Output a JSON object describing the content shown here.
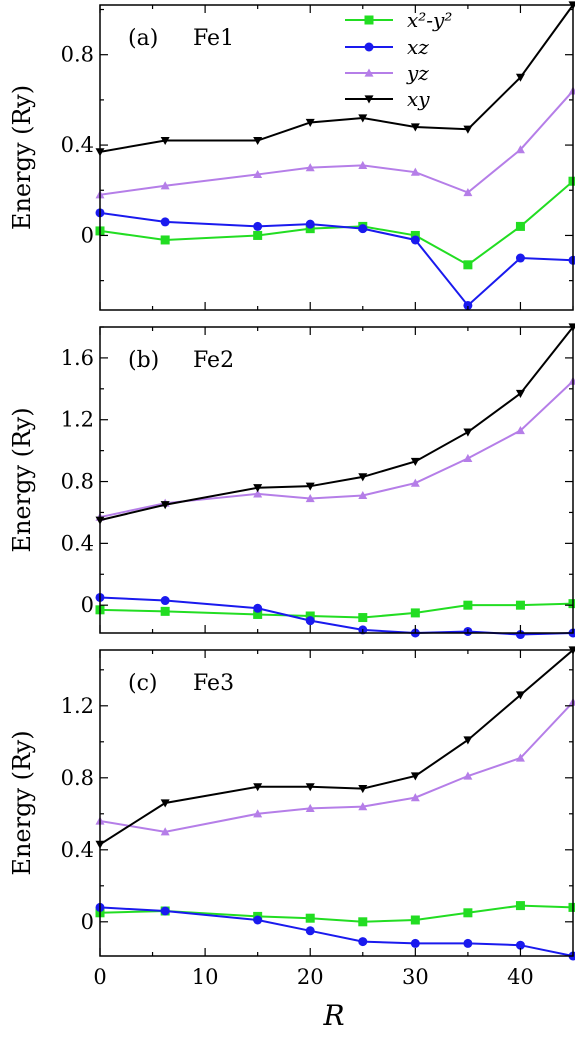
{
  "colors": {
    "x2y2": "#22dd22",
    "xz": "#1a1aee",
    "yz": "#b57ee8",
    "xy": "#000000"
  },
  "legend": [
    {
      "key": "x2y2",
      "label": "x²-y²",
      "marker": "square"
    },
    {
      "key": "xz",
      "label": "xz",
      "marker": "circle"
    },
    {
      "key": "yz",
      "label": "yz",
      "marker": "triangle-up"
    },
    {
      "key": "xy",
      "label": "xy",
      "marker": "triangle-down"
    }
  ],
  "xlabel": "R",
  "chart_data": [
    {
      "type": "line",
      "panel_label": "(a)",
      "panel_name": "Fe1",
      "ylabel": "Energy (Ry)",
      "xlim": [
        0,
        45
      ],
      "ylim": [
        -0.33,
        1.02
      ],
      "x_ticks": [
        0,
        10,
        20,
        30,
        40
      ],
      "y_ticks": [
        0,
        0.4,
        0.8
      ],
      "y_tick_labels": [
        "0",
        "0.4",
        "0.8"
      ],
      "x": [
        0,
        6.2,
        15,
        20,
        25,
        30,
        35,
        40,
        45
      ],
      "series": [
        {
          "key": "x2y2",
          "name": "x²-y²",
          "values": [
            0.02,
            -0.02,
            0.0,
            0.03,
            0.04,
            0.0,
            -0.13,
            0.04,
            0.24
          ]
        },
        {
          "key": "xz",
          "name": "xz",
          "values": [
            0.1,
            0.06,
            0.04,
            0.05,
            0.03,
            -0.02,
            -0.31,
            -0.1,
            -0.11
          ]
        },
        {
          "key": "yz",
          "name": "yz",
          "values": [
            0.18,
            0.22,
            0.27,
            0.3,
            0.31,
            0.28,
            0.19,
            0.38,
            0.64
          ]
        },
        {
          "key": "xy",
          "name": "xy",
          "values": [
            0.37,
            0.42,
            0.42,
            0.5,
            0.52,
            0.48,
            0.47,
            0.7,
            1.02
          ]
        }
      ]
    },
    {
      "type": "line",
      "panel_label": "(b)",
      "panel_name": "Fe2",
      "ylabel": "Energy (Ry)",
      "xlim": [
        0,
        45
      ],
      "ylim": [
        -0.18,
        1.8
      ],
      "x_ticks": [
        0,
        10,
        20,
        30,
        40
      ],
      "y_ticks": [
        0,
        0.4,
        0.8,
        1.2,
        1.6
      ],
      "y_tick_labels": [
        "0",
        "0.4",
        "0.8",
        "1.2",
        "1.6"
      ],
      "x": [
        0,
        6.2,
        15,
        20,
        25,
        30,
        35,
        40,
        45
      ],
      "series": [
        {
          "key": "x2y2",
          "name": "x²-y²",
          "values": [
            -0.03,
            -0.04,
            -0.06,
            -0.07,
            -0.08,
            -0.05,
            0.0,
            0.0,
            0.01
          ]
        },
        {
          "key": "xz",
          "name": "xz",
          "values": [
            0.05,
            0.03,
            -0.02,
            -0.1,
            -0.16,
            -0.18,
            -0.17,
            -0.19,
            -0.18
          ]
        },
        {
          "key": "yz",
          "name": "yz",
          "values": [
            0.57,
            0.66,
            0.72,
            0.69,
            0.71,
            0.79,
            0.95,
            1.13,
            1.45
          ]
        },
        {
          "key": "xy",
          "name": "xy",
          "values": [
            0.55,
            0.65,
            0.76,
            0.77,
            0.83,
            0.93,
            1.12,
            1.37,
            1.8
          ]
        }
      ]
    },
    {
      "type": "line",
      "panel_label": "(c)",
      "panel_name": "Fe3",
      "ylabel": "Energy (Ry)",
      "xlim": [
        0,
        45
      ],
      "ylim": [
        -0.19,
        1.51
      ],
      "x_ticks": [
        0,
        10,
        20,
        30,
        40
      ],
      "x_tick_labels": [
        "0",
        "10",
        "20",
        "30",
        "40"
      ],
      "y_ticks": [
        0,
        0.4,
        0.8,
        1.2
      ],
      "y_tick_labels": [
        "0",
        "0.4",
        "0.8",
        "1.2"
      ],
      "x": [
        0,
        6.2,
        15,
        20,
        25,
        30,
        35,
        40,
        45
      ],
      "series": [
        {
          "key": "x2y2",
          "name": "x²-y²",
          "values": [
            0.05,
            0.06,
            0.03,
            0.02,
            0.0,
            0.01,
            0.05,
            0.09,
            0.08
          ]
        },
        {
          "key": "xz",
          "name": "xz",
          "values": [
            0.08,
            0.06,
            0.01,
            -0.05,
            -0.11,
            -0.12,
            -0.12,
            -0.13,
            -0.19
          ]
        },
        {
          "key": "yz",
          "name": "yz",
          "values": [
            0.56,
            0.5,
            0.6,
            0.63,
            0.64,
            0.69,
            0.81,
            0.91,
            1.22
          ]
        },
        {
          "key": "xy",
          "name": "xy",
          "values": [
            0.43,
            0.66,
            0.75,
            0.75,
            0.74,
            0.81,
            1.01,
            1.26,
            1.51
          ]
        }
      ]
    }
  ]
}
